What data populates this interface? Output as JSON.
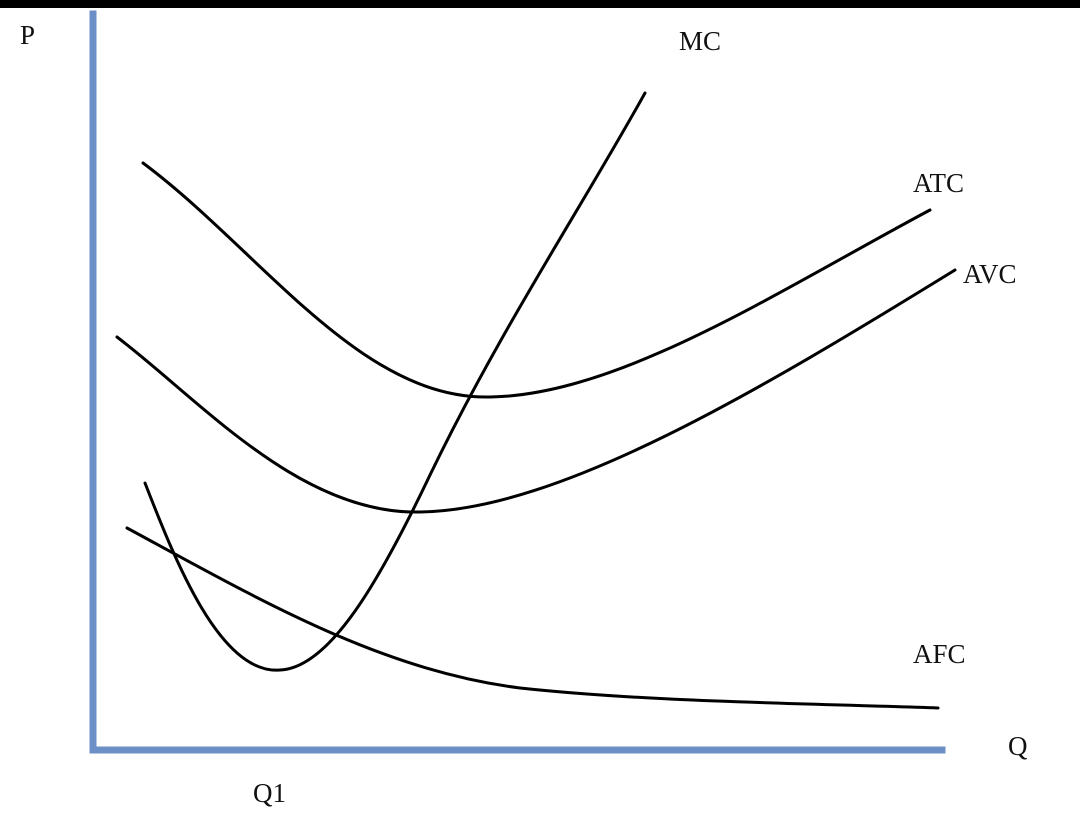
{
  "axes": {
    "y_label": "P",
    "x_label": "Q",
    "x_marker": "Q1"
  },
  "curves": [
    {
      "label": "MC"
    },
    {
      "label": "ATC"
    },
    {
      "label": "AVC"
    },
    {
      "label": "AFC"
    }
  ]
}
